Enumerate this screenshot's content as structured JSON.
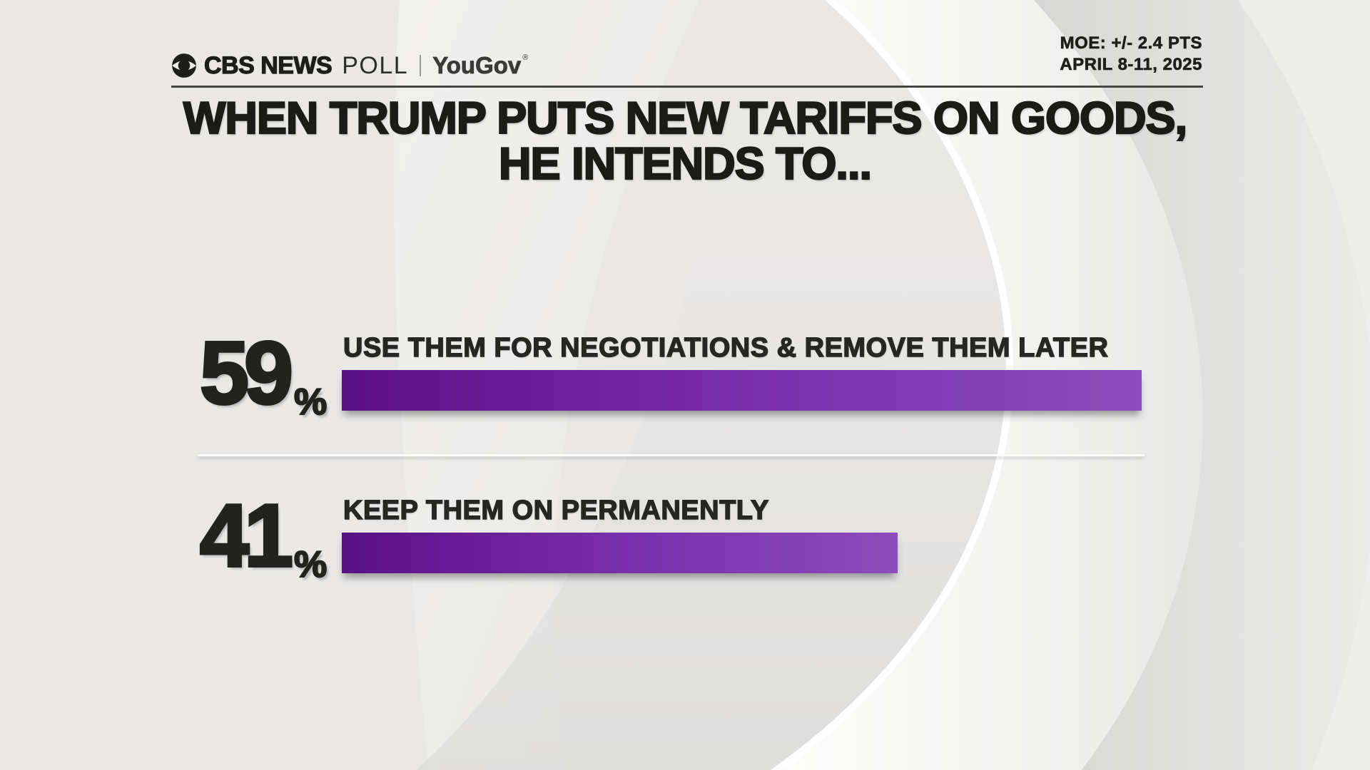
{
  "header": {
    "brand": {
      "cbs": "CBS NEWS",
      "poll": "POLL",
      "partner": "YouGov",
      "trademark": "®"
    },
    "meta": {
      "moe": "MOE: +/- 2.4 PTS",
      "dates": "APRIL 8-11, 2025"
    }
  },
  "title": {
    "line1": "WHEN TRUMP PUTS NEW TARIFFS ON GOODS,",
    "line2": "HE INTENDS TO..."
  },
  "percent_sign": "%",
  "chart_data": {
    "type": "bar",
    "orientation": "horizontal",
    "title": "WHEN TRUMP PUTS NEW TARIFFS ON GOODS, HE INTENDS TO...",
    "categories": [
      "USE THEM FOR NEGOTIATIONS & REMOVE THEM LATER",
      "KEEP THEM ON PERMANENTLY"
    ],
    "values": [
      59,
      41
    ],
    "value_labels": [
      "59",
      "41"
    ],
    "unit": "%",
    "xlim": [
      0,
      59
    ],
    "grid": "off",
    "legend": "none",
    "bar_gradient": [
      "#5a1086",
      "#7c31ae",
      "#8d4bbb"
    ],
    "source": "CBS NEWS POLL | YouGov",
    "margin_of_error": "+/- 2.4 PTS",
    "field_dates": "APRIL 8-11, 2025"
  },
  "colors": {
    "background": "#e9e8e7",
    "text": "#1d1d1b",
    "bar_start": "#5a1086",
    "bar_end": "#8d4bbb",
    "header_rule": "#454543",
    "row_divider": "#fcfcfb"
  }
}
